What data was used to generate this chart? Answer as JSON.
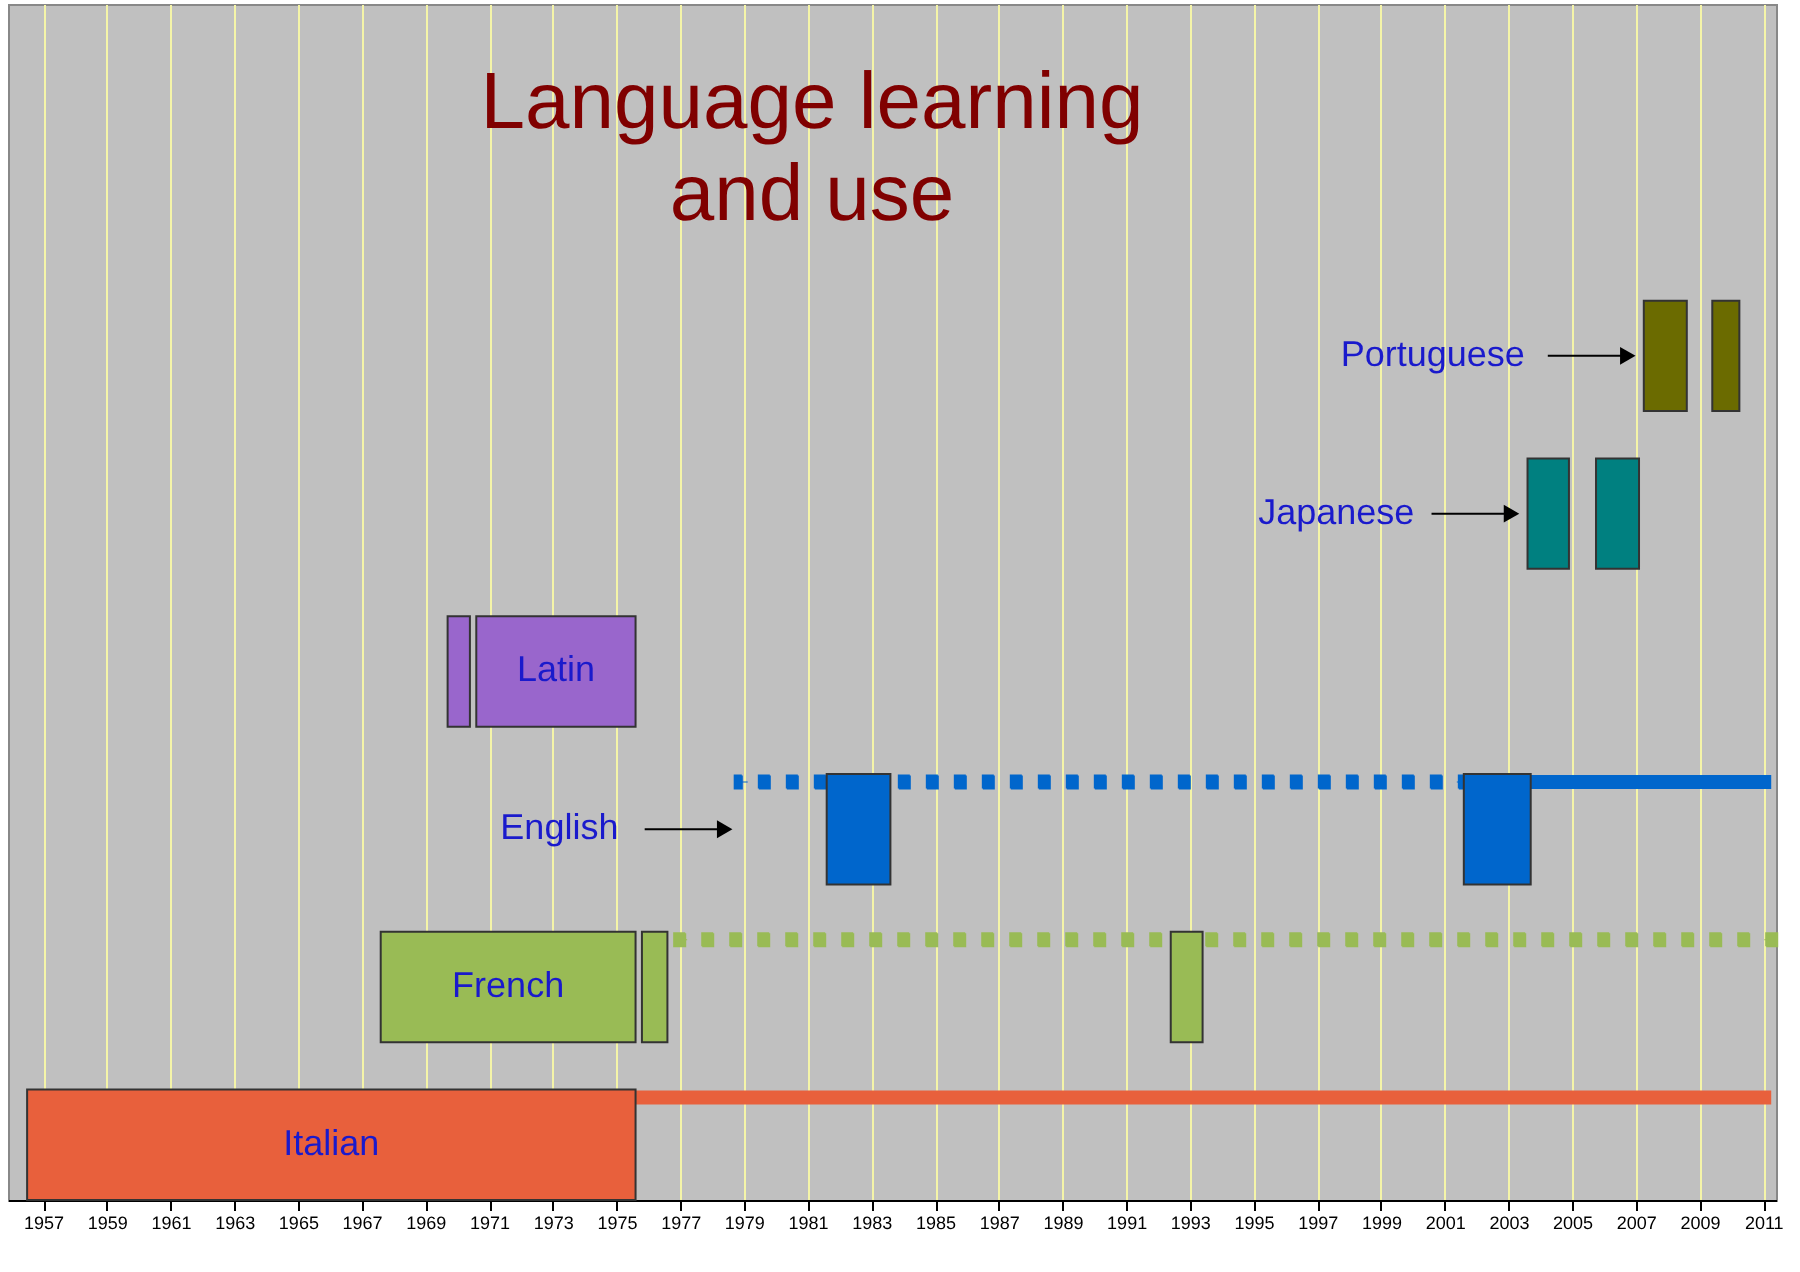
{
  "chart_data": {
    "type": "bar",
    "orientation": "horizontal",
    "title": "Language learning\nand use",
    "categories": [
      "Portuguese",
      "Japanese",
      "Latin",
      "English",
      "French",
      "Italian"
    ],
    "series": [
      {
        "line_style": "dotted",
        "colors": [
          "#6b6b00",
          "#008080",
          "#9966cc",
          "#0066cc",
          "#99bb55",
          "#e8603c"
        ],
        "base": [
          null,
          null,
          null,
          1978.9,
          1977.0,
          null
        ],
        "values": [
          null,
          null,
          null,
          22.7,
          34.25,
          null
        ]
      },
      {
        "line_style": "solid",
        "colors": [
          "#6b6b00",
          "#008080",
          "#9966cc",
          "#0066cc",
          "#99bb55",
          "#e8603c"
        ],
        "base": [
          null,
          null,
          null,
          2003.7,
          null,
          1975.6
        ],
        "values": [
          null,
          null,
          null,
          7.55,
          null,
          35.65
        ]
      },
      {
        "colors": [
          "#6b6b00",
          "#008080",
          "#9966cc",
          "#0066cc",
          "#99bb55",
          "#e8603c"
        ],
        "base": [
          2007.25,
          2003.6,
          1969.7,
          1981.6,
          1967.6,
          1956.5
        ],
        "values": [
          1.35,
          1.3,
          0.7,
          2.0,
          8.0,
          19.1
        ]
      },
      {
        "colors": [
          "#6b6b00",
          "#008080",
          "#9966cc",
          "#0066cc",
          "#99bb55",
          "#e8603c"
        ],
        "base": [
          2009.4,
          2005.75,
          1970.6,
          2001.6,
          1975.8,
          null
        ],
        "values": [
          0.85,
          1.35,
          5.0,
          2.1,
          0.8,
          null
        ]
      },
      {
        "colors": [
          "#6b6b00",
          "#008080",
          "#9966cc",
          "#0066cc",
          "#99bb55",
          "#e8603c"
        ],
        "base": [
          null,
          null,
          null,
          null,
          1992.4,
          null
        ],
        "values": [
          null,
          null,
          null,
          null,
          1.0,
          null
        ]
      }
    ],
    "xlim": [
      1955.9,
      2011.4
    ],
    "xticks": [
      1957,
      1959,
      1961,
      1963,
      1965,
      1967,
      1969,
      1971,
      1973,
      1975,
      1977,
      1979,
      1981,
      1983,
      1985,
      1987,
      1989,
      1991,
      1993,
      1995,
      1997,
      1999,
      2001,
      2003,
      2005,
      2007,
      2009,
      2011
    ],
    "grid": "x",
    "tick_labels": "x",
    "legend": false
  }
}
